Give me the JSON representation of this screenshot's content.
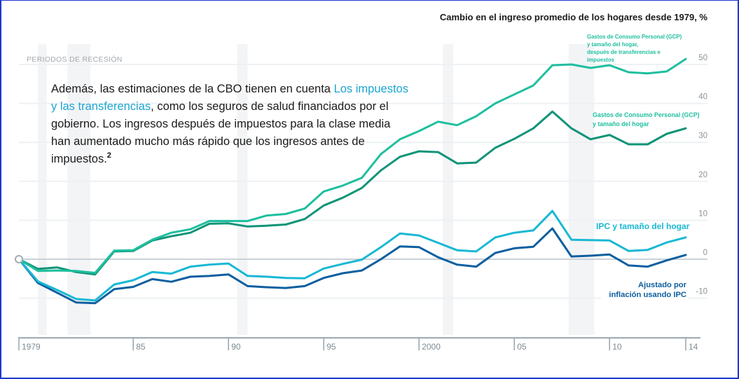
{
  "intro": {
    "line1": "Además, las estimaciones de la CBO tienen en cuenta ",
    "link_part1": "Los impuestos",
    "link_part2": "y las transferencias",
    "line2_rest": ", como los seguros de salud financiados por el",
    "line3": "gobierno. Los ingresos después de impuestos para la clase media",
    "line4": "han aumentado mucho más rápido que los ingresos antes de",
    "line5": "impuestos.",
    "footnote_ref": "2"
  },
  "chart_data": {
    "type": "line",
    "title": "Cambio en el ingreso promedio de los hogares desde 1979, %",
    "xlabel": "",
    "ylabel": "",
    "recession_label": "PERIODOS DE RECESIÓN",
    "x": [
      1979,
      1980,
      1981,
      1982,
      1983,
      1984,
      1985,
      1986,
      1987,
      1988,
      1989,
      1990,
      1991,
      1992,
      1993,
      1994,
      1995,
      1996,
      1997,
      1998,
      1999,
      2000,
      2001,
      2002,
      2003,
      2004,
      2005,
      2006,
      2007,
      2008,
      2009,
      2010,
      2011,
      2012,
      2013,
      2014
    ],
    "xticks": [
      1979,
      1985,
      1990,
      1995,
      2000,
      2005,
      2010,
      2014
    ],
    "xtick_labels": [
      "1979",
      "85",
      "90",
      "95",
      "2000",
      "05",
      "10",
      "14"
    ],
    "yticks": [
      -10,
      0,
      10,
      20,
      30,
      40,
      50
    ],
    "ytick_labels": [
      "-10",
      "0",
      "10",
      "20",
      "30",
      "40",
      "50"
    ],
    "ylim": [
      -20,
      55.2
    ],
    "ytick_position": "right",
    "grid": true,
    "recessions": [
      [
        1980.0,
        1980.45
      ],
      [
        1981.55,
        1982.75
      ],
      [
        1990.45,
        1991.0
      ],
      [
        2001.25,
        2001.8
      ],
      [
        2007.85,
        2009.2
      ]
    ],
    "colors": {
      "grid": "#eef1f4",
      "zero_line": "#c9d2d9",
      "axis": "#97a4ad",
      "recession": "#f3f4f6",
      "origin_marker": "#a3abb1"
    },
    "series": [
      {
        "id": "gcp-after-transfers-taxes",
        "label_lines": [
          "Gastos de Consumo Personal (GCP)",
          "y tamaño del hogar,",
          "después de transferencias e",
          "impuestos"
        ],
        "color": "#1fbf9f",
        "label_color": "#1fbf9f",
        "values": [
          0,
          -3.0,
          -2.9,
          -3.0,
          -3.5,
          2.2,
          2.3,
          5.0,
          6.8,
          7.7,
          9.8,
          9.8,
          9.8,
          11.2,
          11.6,
          13.0,
          17.4,
          18.9,
          20.9,
          27.0,
          30.8,
          32.9,
          35.3,
          34.4,
          36.7,
          40.0,
          42.3,
          44.6,
          49.8,
          50.0,
          49.1,
          49.8,
          48.0,
          47.7,
          48.2,
          51.4
        ]
      },
      {
        "id": "gcp-household-size",
        "label_lines": [
          "Gastos de Consumo Personal (GCP)",
          "y tamaño del hogar"
        ],
        "color": "#0f9478",
        "label_color": "#1fbf9f",
        "values": [
          0,
          -2.5,
          -2.1,
          -3.3,
          -3.9,
          2.0,
          2.1,
          4.8,
          5.9,
          6.8,
          9.1,
          9.2,
          8.4,
          8.6,
          8.9,
          10.3,
          13.8,
          15.8,
          18.3,
          22.8,
          26.3,
          27.7,
          27.5,
          24.6,
          24.8,
          28.6,
          30.9,
          33.6,
          37.9,
          33.6,
          30.8,
          31.9,
          29.5,
          29.5,
          32.2,
          33.6
        ]
      },
      {
        "id": "cpi-household-size",
        "label_lines": [
          "IPC y tamaño del hogar"
        ],
        "color": "#19b8d4",
        "label_color": "#19b8d4",
        "values": [
          0,
          -5.7,
          -7.9,
          -10.2,
          -10.6,
          -6.5,
          -5.4,
          -3.3,
          -3.7,
          -1.9,
          -1.4,
          -1.1,
          -4.3,
          -4.5,
          -4.8,
          -4.9,
          -2.4,
          -1.2,
          -0.1,
          3.1,
          6.6,
          6.1,
          4.2,
          2.3,
          2.0,
          5.6,
          6.8,
          7.4,
          12.4,
          5.0,
          4.9,
          4.8,
          2.1,
          2.4,
          4.3,
          5.6
        ]
      },
      {
        "id": "cpi-adjusted",
        "label_lines": [
          "Ajustado por",
          "inflación usando IPC"
        ],
        "color": "#0d5fa0",
        "label_color": "#0d5fa0",
        "values": [
          0,
          -6.1,
          -8.6,
          -11.1,
          -11.3,
          -7.7,
          -7.1,
          -5.1,
          -5.8,
          -4.5,
          -4.3,
          -3.9,
          -6.9,
          -7.2,
          -7.4,
          -6.9,
          -4.8,
          -3.6,
          -2.9,
          0.0,
          3.3,
          3.1,
          0.5,
          -1.4,
          -1.9,
          1.6,
          2.8,
          3.2,
          7.9,
          0.7,
          0.9,
          1.2,
          -1.6,
          -1.9,
          -0.3,
          1.1
        ]
      }
    ]
  }
}
